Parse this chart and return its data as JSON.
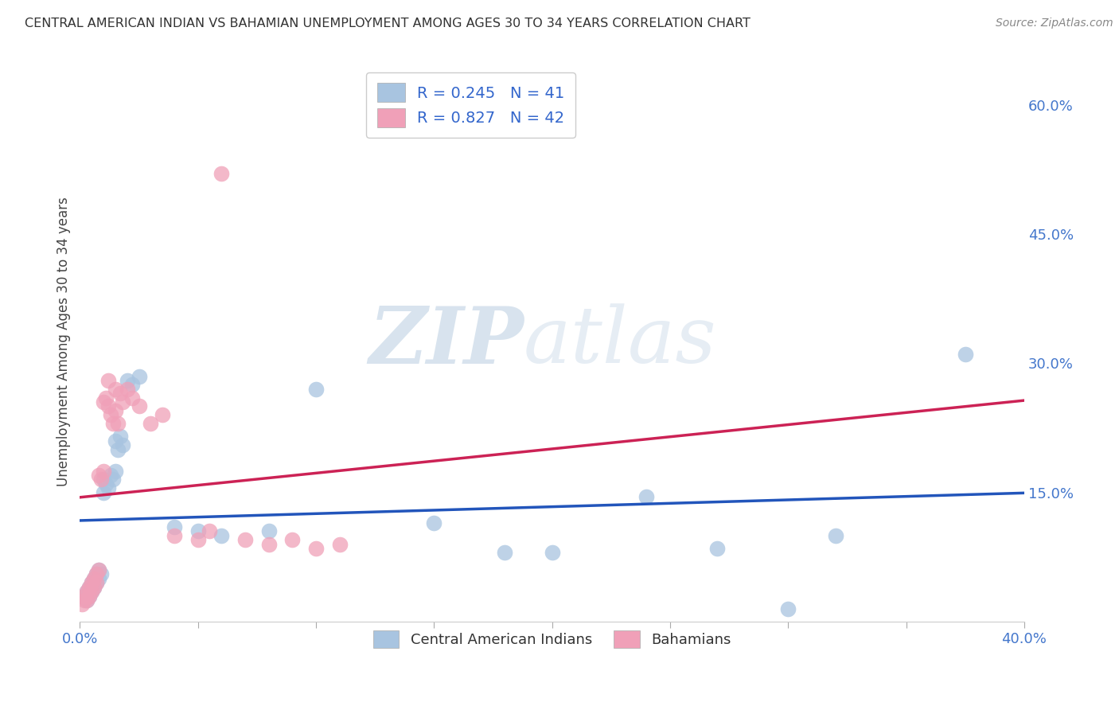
{
  "title": "CENTRAL AMERICAN INDIAN VS BAHAMIAN UNEMPLOYMENT AMONG AGES 30 TO 34 YEARS CORRELATION CHART",
  "source": "Source: ZipAtlas.com",
  "ylabel": "Unemployment Among Ages 30 to 34 years",
  "xlim": [
    0.0,
    0.4
  ],
  "ylim": [
    0.0,
    0.65
  ],
  "xticks": [
    0.0,
    0.05,
    0.1,
    0.15,
    0.2,
    0.25,
    0.3,
    0.35,
    0.4
  ],
  "yticks_right": [
    0.0,
    0.15,
    0.3,
    0.45,
    0.6
  ],
  "yticklabels_right": [
    "",
    "15.0%",
    "30.0%",
    "45.0%",
    "60.0%"
  ],
  "grid_color": "#c8c8c8",
  "background_color": "#ffffff",
  "watermark_zip": "ZIP",
  "watermark_atlas": "atlas",
  "legend_R1": "R = 0.245",
  "legend_N1": "N = 41",
  "legend_R2": "R = 0.827",
  "legend_N2": "N = 42",
  "color_blue": "#a8c4e0",
  "color_pink": "#f0a0b8",
  "line_color_blue": "#2255bb",
  "line_color_pink": "#cc2255",
  "scatter_blue": [
    [
      0.002,
      0.03
    ],
    [
      0.003,
      0.025
    ],
    [
      0.003,
      0.035
    ],
    [
      0.004,
      0.03
    ],
    [
      0.004,
      0.04
    ],
    [
      0.005,
      0.035
    ],
    [
      0.005,
      0.045
    ],
    [
      0.006,
      0.04
    ],
    [
      0.006,
      0.05
    ],
    [
      0.007,
      0.045
    ],
    [
      0.007,
      0.055
    ],
    [
      0.008,
      0.05
    ],
    [
      0.008,
      0.06
    ],
    [
      0.009,
      0.055
    ],
    [
      0.01,
      0.15
    ],
    [
      0.01,
      0.165
    ],
    [
      0.011,
      0.16
    ],
    [
      0.012,
      0.155
    ],
    [
      0.013,
      0.17
    ],
    [
      0.014,
      0.165
    ],
    [
      0.015,
      0.175
    ],
    [
      0.015,
      0.21
    ],
    [
      0.016,
      0.2
    ],
    [
      0.017,
      0.215
    ],
    [
      0.018,
      0.205
    ],
    [
      0.02,
      0.28
    ],
    [
      0.022,
      0.275
    ],
    [
      0.025,
      0.285
    ],
    [
      0.04,
      0.11
    ],
    [
      0.05,
      0.105
    ],
    [
      0.06,
      0.1
    ],
    [
      0.08,
      0.105
    ],
    [
      0.1,
      0.27
    ],
    [
      0.15,
      0.115
    ],
    [
      0.18,
      0.08
    ],
    [
      0.2,
      0.08
    ],
    [
      0.24,
      0.145
    ],
    [
      0.27,
      0.085
    ],
    [
      0.3,
      0.015
    ],
    [
      0.32,
      0.1
    ],
    [
      0.375,
      0.31
    ]
  ],
  "scatter_pink": [
    [
      0.001,
      0.02
    ],
    [
      0.002,
      0.025
    ],
    [
      0.002,
      0.03
    ],
    [
      0.003,
      0.025
    ],
    [
      0.003,
      0.035
    ],
    [
      0.004,
      0.03
    ],
    [
      0.004,
      0.04
    ],
    [
      0.005,
      0.035
    ],
    [
      0.005,
      0.045
    ],
    [
      0.006,
      0.04
    ],
    [
      0.006,
      0.05
    ],
    [
      0.007,
      0.055
    ],
    [
      0.007,
      0.045
    ],
    [
      0.008,
      0.06
    ],
    [
      0.008,
      0.17
    ],
    [
      0.009,
      0.165
    ],
    [
      0.01,
      0.175
    ],
    [
      0.01,
      0.255
    ],
    [
      0.011,
      0.26
    ],
    [
      0.012,
      0.25
    ],
    [
      0.013,
      0.24
    ],
    [
      0.014,
      0.23
    ],
    [
      0.015,
      0.245
    ],
    [
      0.016,
      0.23
    ],
    [
      0.017,
      0.265
    ],
    [
      0.018,
      0.255
    ],
    [
      0.02,
      0.27
    ],
    [
      0.022,
      0.26
    ],
    [
      0.025,
      0.25
    ],
    [
      0.03,
      0.23
    ],
    [
      0.035,
      0.24
    ],
    [
      0.04,
      0.1
    ],
    [
      0.05,
      0.095
    ],
    [
      0.055,
      0.105
    ],
    [
      0.07,
      0.095
    ],
    [
      0.08,
      0.09
    ],
    [
      0.09,
      0.095
    ],
    [
      0.1,
      0.085
    ],
    [
      0.11,
      0.09
    ],
    [
      0.06,
      0.52
    ],
    [
      0.015,
      0.27
    ],
    [
      0.012,
      0.28
    ]
  ]
}
